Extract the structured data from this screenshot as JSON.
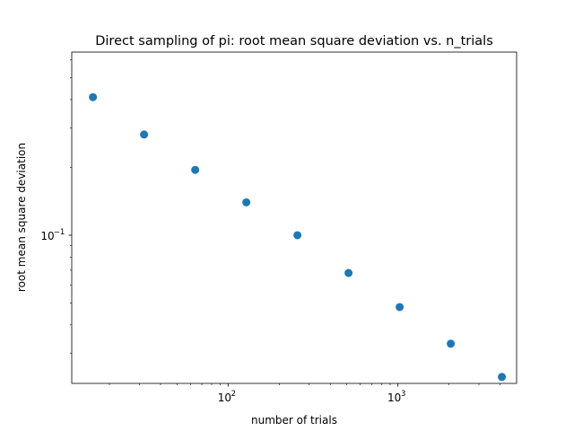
{
  "chart_data": {
    "type": "scatter",
    "title": "Direct sampling of pi: root mean square deviation vs. n_trials",
    "xlabel": "number of trials",
    "ylabel": "root mean square deviation",
    "xscale": "log",
    "yscale": "log",
    "xlim": [
      12,
      5000
    ],
    "ylim": [
      0.022,
      0.65
    ],
    "x_ticks": [
      {
        "value": 100,
        "label": "10",
        "exp": "2"
      },
      {
        "value": 1000,
        "label": "10",
        "exp": "3"
      }
    ],
    "y_ticks": [
      {
        "value": 0.1,
        "label": "10",
        "exp": "−1"
      }
    ],
    "series": [
      {
        "color": "#1f77b4",
        "x": [
          16,
          32,
          64,
          128,
          256,
          512,
          1024,
          2048,
          4096
        ],
        "y": [
          0.41,
          0.28,
          0.195,
          0.14,
          0.1,
          0.068,
          0.048,
          0.033,
          0.0235
        ]
      }
    ],
    "grid": false,
    "legend": false
  }
}
